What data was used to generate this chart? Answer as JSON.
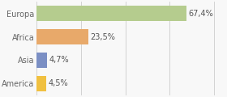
{
  "categories": [
    "America",
    "Asia",
    "Africa",
    "Europa"
  ],
  "values": [
    4.5,
    4.7,
    23.5,
    67.4
  ],
  "labels": [
    "4,5%",
    "4,7%",
    "23,5%",
    "67,4%"
  ],
  "bar_colors": [
    "#f0c040",
    "#7b8fc4",
    "#e8a96a",
    "#b5cc8e"
  ],
  "xlim": [
    0,
    85
  ],
  "background_color": "#f8f8f8",
  "label_fontsize": 7.0,
  "tick_fontsize": 7.0,
  "xticks": [
    0,
    20,
    40,
    60,
    80
  ]
}
